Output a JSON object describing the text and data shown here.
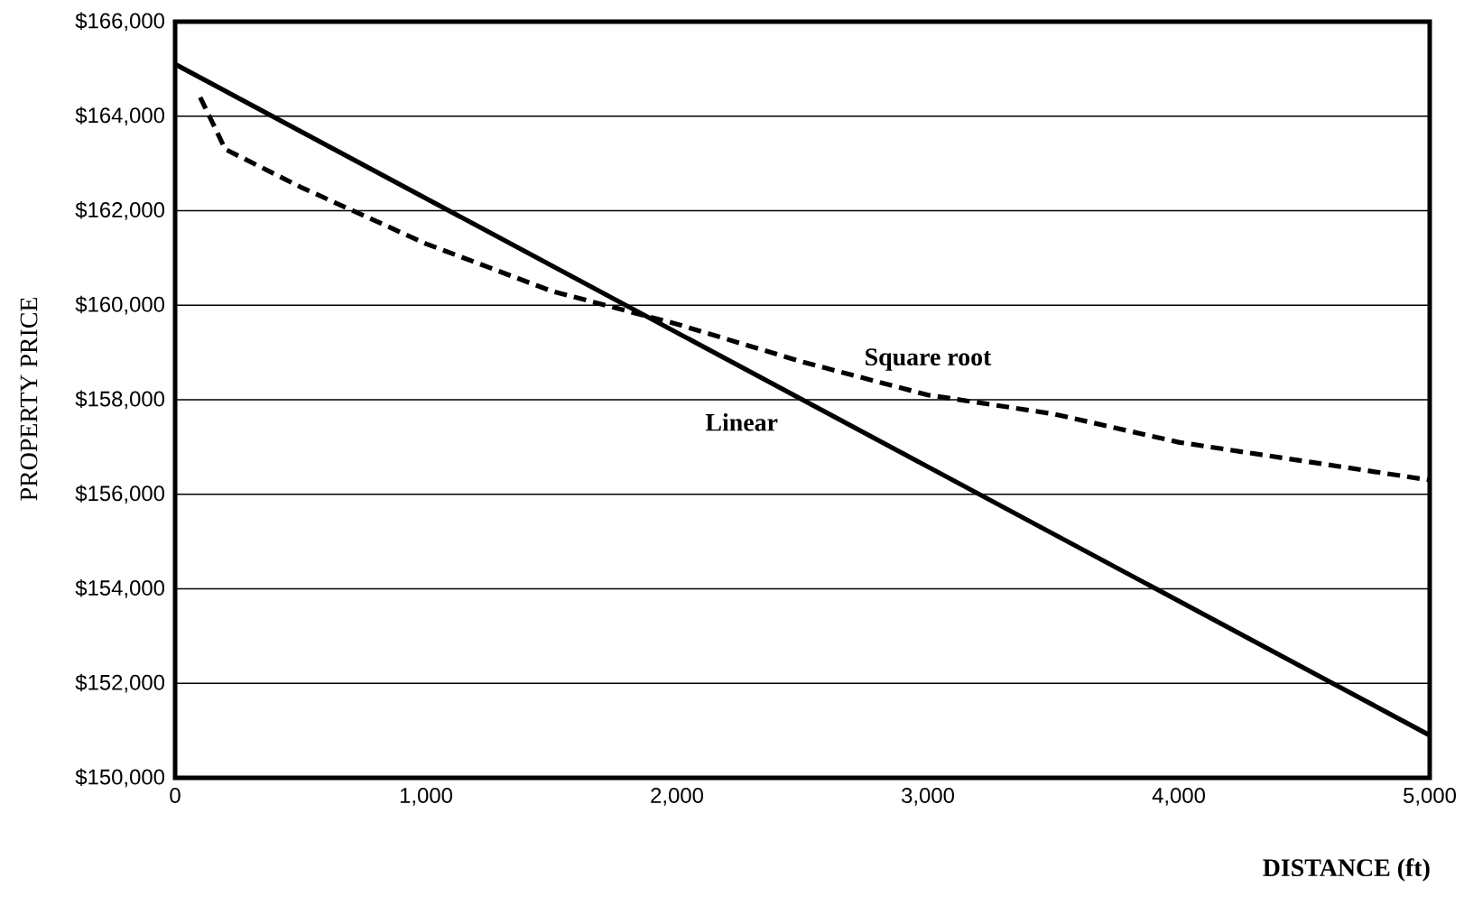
{
  "chart_data": {
    "type": "line",
    "xlabel": "DISTANCE (ft)",
    "ylabel": "PROPERTY PRICE",
    "series": [
      {
        "name": "Linear",
        "color": "#000000",
        "line_style": "solid",
        "x": [
          0,
          5000
        ],
        "values": [
          165100,
          150900
        ]
      },
      {
        "name": "Square root",
        "color": "#000000",
        "line_style": "dashed",
        "x": [
          100,
          200,
          500,
          1000,
          1500,
          2000,
          2500,
          3000,
          3500,
          4000,
          4500,
          5000
        ],
        "values": [
          164400,
          163300,
          162500,
          161300,
          160300,
          159600,
          158800,
          158100,
          157700,
          157100,
          156700,
          156300
        ]
      }
    ],
    "xlim": [
      0,
      5000
    ],
    "ylim": [
      150000,
      166000
    ],
    "xticks": [
      0,
      {
        "value": 1000,
        "label": "1,000"
      },
      {
        "value": 2000,
        "label": "2,000"
      },
      {
        "value": 3000,
        "label": "3,000"
      },
      {
        "value": 4000,
        "label": "4,000"
      },
      {
        "value": 5000,
        "label": "5,000"
      }
    ],
    "yticks": [
      {
        "value": 150000,
        "label": "$150,000"
      },
      {
        "value": 152000,
        "label": "$152,000"
      },
      {
        "value": 154000,
        "label": "$154,000"
      },
      {
        "value": 156000,
        "label": "$156,000"
      },
      {
        "value": 158000,
        "label": "$158,000"
      },
      {
        "value": 160000,
        "label": "$160,000"
      },
      {
        "value": 162000,
        "label": "$162,000"
      },
      {
        "value": 164000,
        "label": "$164,000"
      },
      {
        "value": 166000,
        "label": "$166,000"
      }
    ],
    "grid": "y",
    "marker": "none",
    "legend": false
  }
}
